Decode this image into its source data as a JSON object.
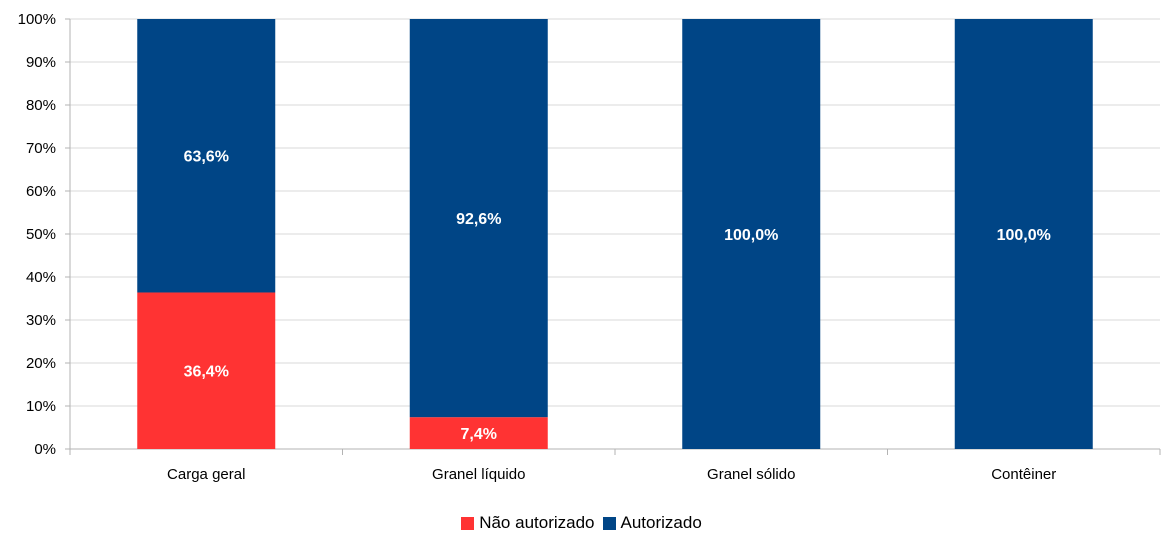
{
  "chart_data": {
    "type": "bar",
    "stacked": true,
    "categories": [
      "Carga geral",
      "Granel líquido",
      "Granel sólido",
      "Contêiner"
    ],
    "series": [
      {
        "name": "Não autorizado",
        "values": [
          36.4,
          7.4,
          0,
          0
        ],
        "labels": [
          "36,4%",
          "7,4%",
          "",
          ""
        ],
        "color": "#ff3333"
      },
      {
        "name": "Autorizado",
        "values": [
          63.6,
          92.6,
          100,
          100
        ],
        "labels": [
          "63,6%",
          "92,6%",
          "100,0%",
          "100,0%"
        ],
        "color": "#004586"
      }
    ],
    "yticks": [
      "0%",
      "10%",
      "20%",
      "30%",
      "40%",
      "50%",
      "60%",
      "70%",
      "80%",
      "90%",
      "100%"
    ],
    "ylim": [
      0,
      100
    ],
    "grid": true,
    "legend_position": "bottom"
  }
}
